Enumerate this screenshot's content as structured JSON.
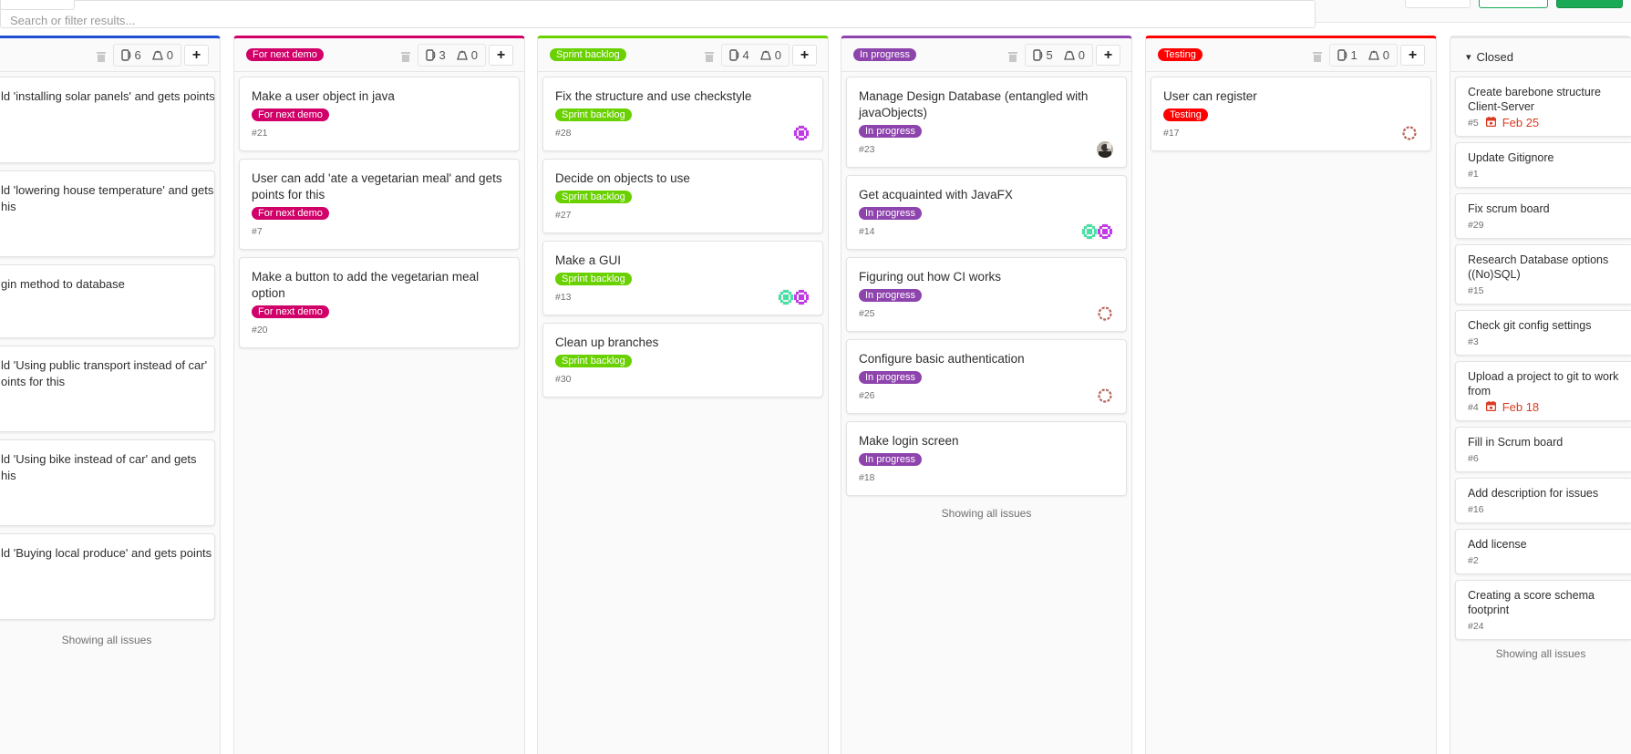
{
  "toolbar": {
    "search_placeholder": "Search or filter results..."
  },
  "colors": {
    "open": "#1f4fd1",
    "for_next_demo": "#d10069",
    "sprint_backlog": "#69d100",
    "in_progress": "#8e44ad",
    "testing": "#ff0000",
    "due": "#db3b21",
    "primary": "#1aaa55"
  },
  "columns": [
    {
      "key": "open",
      "issue_count": "6",
      "weight": "0",
      "showing": "Showing all issues",
      "cards": [
        {
          "lines": [
            "ld 'installing solar panels' and gets points"
          ]
        },
        {
          "lines": [
            "ld 'lowering house temperature' and gets",
            "his"
          ]
        },
        {
          "lines": [
            "gin method to database"
          ]
        },
        {
          "lines": [
            "ld 'Using public transport instead of car'",
            "oints for this"
          ]
        },
        {
          "lines": [
            "ld 'Using bike instead of car' and gets",
            "his"
          ]
        },
        {
          "lines": [
            "ld 'Buying local produce' and gets points"
          ]
        }
      ]
    },
    {
      "key": "for_next_demo",
      "label": "For next demo",
      "issue_count": "3",
      "weight": "0",
      "showing": "",
      "cards": [
        {
          "title": "Make a user object in java",
          "number": "#21",
          "avatars": []
        },
        {
          "title": "User can add 'ate a vegetarian meal' and gets points for this",
          "number": "#7",
          "avatars": []
        },
        {
          "title": "Make a button to add the vegetarian meal option",
          "number": "#20",
          "avatars": []
        }
      ]
    },
    {
      "key": "sprint_backlog",
      "label": "Sprint backlog",
      "issue_count": "4",
      "weight": "0",
      "showing": "",
      "cards": [
        {
          "title": "Fix the structure and use checkstyle",
          "number": "#28",
          "avatars": [
            "identicon-purple"
          ]
        },
        {
          "title": "Decide on objects to use",
          "number": "#27",
          "avatars": []
        },
        {
          "title": "Make a GUI",
          "number": "#13",
          "avatars": [
            "identicon-green",
            "identicon-purple"
          ]
        },
        {
          "title": "Clean up branches",
          "number": "#30",
          "avatars": []
        }
      ]
    },
    {
      "key": "in_progress",
      "label": "In progress",
      "issue_count": "5",
      "weight": "0",
      "showing": "Showing all issues",
      "cards": [
        {
          "title": "Manage Design Database (entangled with javaObjects)",
          "number": "#23",
          "avatars": [
            "photo"
          ]
        },
        {
          "title": "Get acquainted with JavaFX",
          "number": "#14",
          "avatars": [
            "identicon-green",
            "identicon-purple"
          ]
        },
        {
          "title": "Figuring out how CI works",
          "number": "#25",
          "avatars": [
            "identicon-brown"
          ]
        },
        {
          "title": "Configure basic authentication",
          "number": "#26",
          "avatars": [
            "identicon-brown"
          ]
        },
        {
          "title": "Make login screen",
          "number": "#18",
          "avatars": []
        }
      ]
    },
    {
      "key": "testing",
      "label": "Testing",
      "issue_count": "1",
      "weight": "0",
      "showing": "",
      "cards": [
        {
          "title": "User can register",
          "number": "#17",
          "avatars": [
            "identicon-brown"
          ]
        }
      ]
    },
    {
      "key": "closed",
      "label": "Closed",
      "showing": "Showing all issues",
      "cards": [
        {
          "title": "Create barebone structure Client-Server",
          "number": "#5",
          "due": "Feb 25"
        },
        {
          "title": "Update Gitignore",
          "number": "#1"
        },
        {
          "title": "Fix scrum board",
          "number": "#29"
        },
        {
          "title": "Research Database options ((No)SQL)",
          "number": "#15"
        },
        {
          "title": "Check git config settings",
          "number": "#3"
        },
        {
          "title": "Upload a project to git to work from",
          "number": "#4",
          "due": "Feb 18"
        },
        {
          "title": "Fill in Scrum board",
          "number": "#6"
        },
        {
          "title": "Add description for issues",
          "number": "#16"
        },
        {
          "title": "Add license",
          "number": "#2"
        },
        {
          "title": "Creating a score schema footprint",
          "number": "#24"
        }
      ]
    }
  ]
}
